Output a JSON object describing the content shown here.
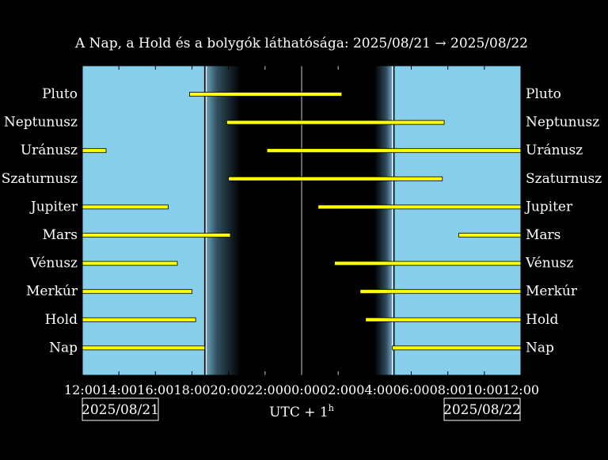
{
  "chart_data": {
    "type": "timeline",
    "title": "A Nap, a Hold és a bolygók láthatósága: 2025/08/21 → 2025/08/22",
    "xlabel": "UTC + 1",
    "xlabel_sup": "h",
    "x_range": [
      "2025-08-21 12:00",
      "2025-08-22 12:00"
    ],
    "x_range_hours": [
      0,
      24
    ],
    "x_ticks": [
      "12:00",
      "14:00",
      "16:00",
      "18:00",
      "20:00",
      "22:00",
      "00:00",
      "02:00",
      "04:00",
      "06:00",
      "08:00",
      "10:00",
      "12:00"
    ],
    "date_left": "2025/08/21",
    "date_right": "2025/08/22",
    "colors": {
      "background": "#000000",
      "day_sky": "#87ceeb",
      "night_sky": "#000000",
      "bar_fill": "#ffff00",
      "bar_outline": "#000000",
      "text": "#ffffff"
    },
    "sunset": "18:42",
    "dusk_end": "20:40",
    "dawn_start": "04:00",
    "sunrise": "04:58",
    "series": [
      {
        "name": "Pluto",
        "intervals": [
          [
            "17:52",
            "02:12"
          ]
        ]
      },
      {
        "name": "Neptunusz",
        "intervals": [
          [
            "19:54",
            "07:48"
          ]
        ]
      },
      {
        "name": "Uránusz",
        "intervals": [
          [
            "12:00",
            "13:18"
          ],
          [
            "22:06",
            "12:00"
          ]
        ]
      },
      {
        "name": "Szaturnusz",
        "intervals": [
          [
            "20:00",
            "07:42"
          ]
        ]
      },
      {
        "name": "Jupiter",
        "intervals": [
          [
            "12:00",
            "16:42"
          ],
          [
            "00:54",
            "12:00"
          ]
        ]
      },
      {
        "name": "Mars",
        "intervals": [
          [
            "12:00",
            "20:06"
          ],
          [
            "08:36",
            "12:00"
          ]
        ]
      },
      {
        "name": "Vénusz",
        "intervals": [
          [
            "12:00",
            "17:12"
          ],
          [
            "01:48",
            "12:00"
          ]
        ]
      },
      {
        "name": "Merkúr",
        "intervals": [
          [
            "12:00",
            "18:00"
          ],
          [
            "03:12",
            "12:00"
          ]
        ]
      },
      {
        "name": "Hold",
        "intervals": [
          [
            "12:00",
            "18:12"
          ],
          [
            "03:30",
            "12:00"
          ]
        ]
      },
      {
        "name": "Nap",
        "intervals": [
          [
            "12:00",
            "18:42"
          ],
          [
            "04:58",
            "12:00"
          ]
        ]
      }
    ]
  }
}
